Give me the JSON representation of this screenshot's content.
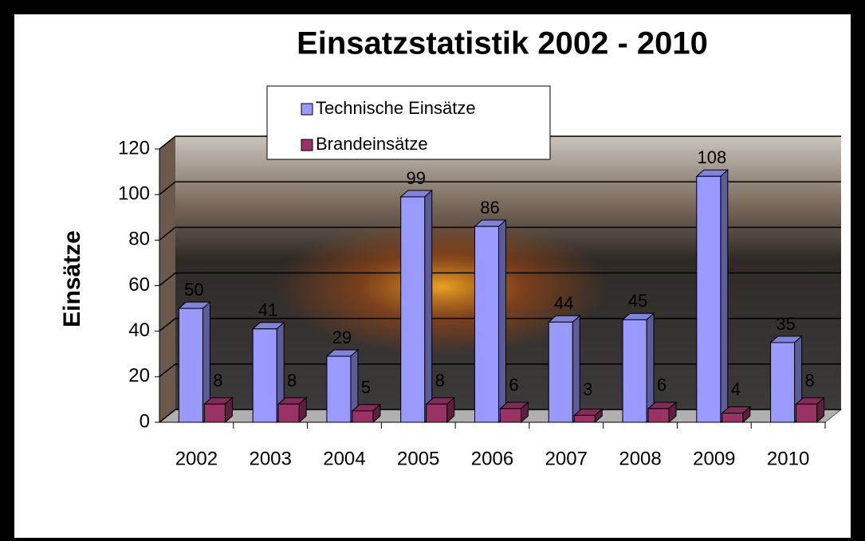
{
  "chart_data": {
    "type": "bar3d",
    "title": "Einsatzstatistik 2002 - 2010",
    "y_label": "Einsätze",
    "categories": [
      "2002",
      "2003",
      "2004",
      "2005",
      "2006",
      "2007",
      "2008",
      "2009",
      "2010"
    ],
    "series": [
      {
        "name": "Technische Einsätze",
        "color": "#9999ff",
        "values": [
          50,
          41,
          29,
          99,
          86,
          44,
          45,
          108,
          35
        ]
      },
      {
        "name": "Brandeinsätze",
        "color": "#993366",
        "values": [
          8,
          8,
          5,
          8,
          6,
          3,
          6,
          4,
          8
        ]
      }
    ],
    "ylim": [
      0,
      120
    ],
    "yticks": [
      0,
      20,
      40,
      60,
      80,
      100,
      120
    ],
    "grid": true
  }
}
